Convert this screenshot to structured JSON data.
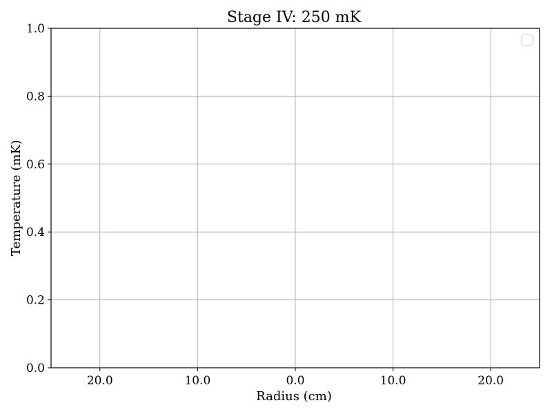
{
  "chart_data": {
    "type": "line",
    "title": "Stage IV: 250 mK",
    "xlabel": "Radius (cm)",
    "ylabel": "Temperature (mK)",
    "xlim": [
      -25,
      25
    ],
    "ylim": [
      0,
      1
    ],
    "x_ticks": [
      -20,
      -10,
      0,
      10,
      20
    ],
    "x_tick_labels": [
      "20.0",
      "10.0",
      "0.0",
      "10.0",
      "20.0"
    ],
    "y_ticks": [
      0,
      0.2,
      0.4,
      0.6,
      0.8,
      1.0
    ],
    "y_tick_labels": [
      "0.0",
      "0.2",
      "0.4",
      "0.6",
      "0.8",
      "1.0"
    ],
    "grid": true,
    "legend_placement": "top-right",
    "legend_entries": [],
    "series": []
  }
}
